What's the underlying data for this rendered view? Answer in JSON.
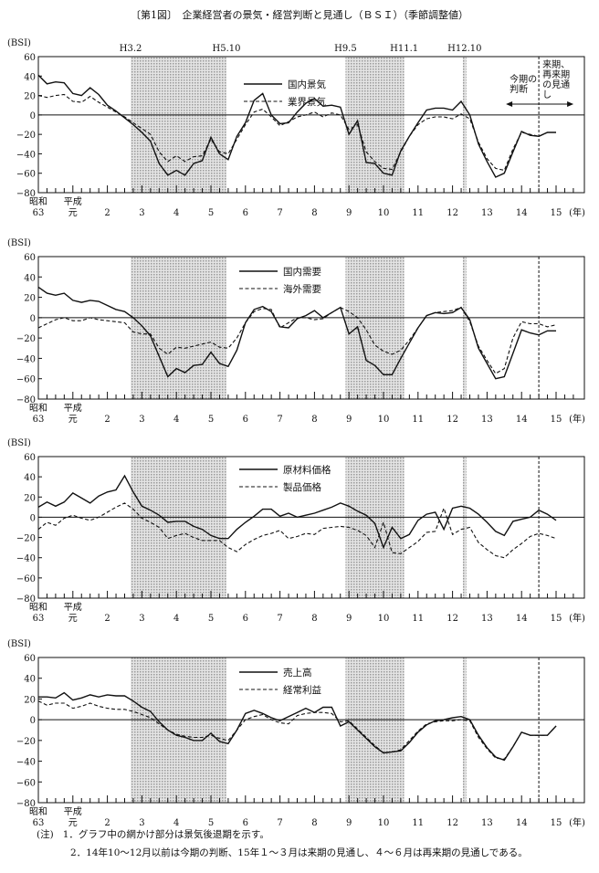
{
  "title": "〔第1図〕　企業経営者の景気・経営判断と見通し（ＢＳＩ）（季節調整値）",
  "period_labels": [
    "H3.2",
    "H5.10",
    "H9.5",
    "H11.1",
    "H12.10"
  ],
  "annotations": {
    "forecast": [
      "来期、",
      "再来期",
      "の見通",
      "し"
    ],
    "current": [
      "今期の",
      "判断"
    ]
  },
  "notes": {
    "prefix": "(注)",
    "items": [
      "1．グラフ中の網かけ部分は景気後退期を示す。",
      "2．14年10〜12月以前は今期の判断、15年１〜３月は来期の見通し、４〜６月は再来期の見通しである。"
    ]
  },
  "colors": {
    "line": "#111111",
    "shade": "#c8c8c8"
  },
  "chart_data": [
    {
      "type": "line",
      "ylabel": "(BSI)",
      "ylim": [
        -80,
        60
      ],
      "yticks": [
        "60",
        "40",
        "20",
        "0",
        "−20",
        "−40",
        "−60",
        "−80"
      ],
      "ytick_values": [
        60,
        40,
        20,
        0,
        -20,
        -40,
        -60,
        -80
      ],
      "xticks": [
        [
          "昭和",
          "63"
        ],
        [
          "平成",
          "元"
        ],
        [
          "",
          "2"
        ],
        [
          "",
          "3"
        ],
        [
          "",
          "4"
        ],
        [
          "",
          "5"
        ],
        [
          "",
          "6"
        ],
        [
          "",
          "7"
        ],
        [
          "",
          "8"
        ],
        [
          "",
          "9"
        ],
        [
          "",
          "10"
        ],
        [
          "",
          "11"
        ],
        [
          "",
          "12"
        ],
        [
          "",
          "13"
        ],
        [
          "",
          "14"
        ],
        [
          "",
          "15"
        ]
      ],
      "xunit": "(年)",
      "recessions_quarters": [
        [
          10.7,
          21.8
        ],
        [
          35.6,
          42.4
        ],
        [
          49.2,
          49.6
        ]
      ],
      "forecast_start_quarter": 58,
      "legend": "top-center",
      "series": [
        {
          "name": "国内景気",
          "style": "solid",
          "values": [
            41,
            32,
            34,
            33,
            22,
            20,
            28,
            21,
            10,
            4,
            -3,
            -10,
            -18,
            -27,
            -50,
            -62,
            -57,
            -62,
            -50,
            -47,
            -23,
            -40,
            -46,
            -22,
            -8,
            15,
            22,
            0,
            -9,
            -8,
            3,
            12,
            17,
            9,
            10,
            8,
            -20,
            -6,
            -49,
            -50,
            -60,
            -62,
            -37,
            -22,
            -8,
            5,
            7,
            7,
            5,
            14,
            0,
            -30,
            -48,
            -64,
            -60,
            -38,
            -17,
            -21,
            -22,
            -18,
            -18
          ]
        },
        {
          "name": "業界景気",
          "style": "dashed",
          "values": [
            20,
            18,
            20,
            21,
            14,
            13,
            19,
            13,
            8,
            3,
            -2,
            -8,
            -14,
            -20,
            -38,
            -48,
            -42,
            -48,
            -43,
            -42,
            -25,
            -38,
            -40,
            -25,
            -10,
            3,
            6,
            -2,
            -11,
            -7,
            -2,
            0,
            3,
            -2,
            2,
            0,
            -15,
            -10,
            -38,
            -48,
            -55,
            -56,
            -38,
            -22,
            -10,
            -4,
            -2,
            -2,
            -4,
            1,
            -4,
            -28,
            -45,
            -55,
            -57,
            -35,
            -18,
            -20,
            -22,
            -18,
            -18
          ]
        }
      ]
    },
    {
      "type": "line",
      "ylabel": "(BSI)",
      "ylim": [
        -80,
        60
      ],
      "yticks": [
        "60",
        "40",
        "20",
        "0",
        "−20",
        "−40",
        "−60",
        "−80"
      ],
      "ytick_values": [
        60,
        40,
        20,
        0,
        -20,
        -40,
        -60,
        -80
      ],
      "xticks": [
        [
          "昭和",
          "63"
        ],
        [
          "平成",
          "元"
        ],
        [
          "",
          "2"
        ],
        [
          "",
          "3"
        ],
        [
          "",
          "4"
        ],
        [
          "",
          "5"
        ],
        [
          "",
          "6"
        ],
        [
          "",
          "7"
        ],
        [
          "",
          "8"
        ],
        [
          "",
          "9"
        ],
        [
          "",
          "10"
        ],
        [
          "",
          "11"
        ],
        [
          "",
          "12"
        ],
        [
          "",
          "13"
        ],
        [
          "",
          "14"
        ],
        [
          "",
          "15"
        ]
      ],
      "xunit": "(年)",
      "recessions_quarters": [
        [
          10.7,
          21.8
        ],
        [
          35.6,
          42.4
        ],
        [
          49.2,
          49.6
        ]
      ],
      "forecast_start_quarter": 58,
      "legend": "top-center",
      "series": [
        {
          "name": "国内需要",
          "style": "solid",
          "values": [
            30,
            24,
            22,
            24,
            17,
            15,
            17,
            16,
            12,
            8,
            6,
            0,
            -8,
            -18,
            -38,
            -58,
            -50,
            -54,
            -47,
            -46,
            -34,
            -45,
            -48,
            -32,
            -5,
            8,
            11,
            6,
            -9,
            -10,
            -1,
            2,
            7,
            0,
            5,
            10,
            -16,
            -9,
            -42,
            -47,
            -56,
            -56,
            -40,
            -25,
            -10,
            2,
            5,
            4,
            5,
            10,
            -2,
            -30,
            -45,
            -60,
            -58,
            -35,
            -12,
            -15,
            -17,
            -13,
            -13
          ]
        },
        {
          "name": "海外需要",
          "style": "dashed",
          "values": [
            -10,
            -6,
            -2,
            0,
            -3,
            -3,
            0,
            -2,
            -3,
            -4,
            -5,
            -14,
            -16,
            -16,
            -30,
            -36,
            -29,
            -30,
            -28,
            -26,
            -24,
            -29,
            -30,
            -20,
            -5,
            6,
            9,
            8,
            -10,
            -5,
            0,
            0,
            -2,
            -1,
            5,
            10,
            6,
            0,
            -12,
            -27,
            -33,
            -36,
            -32,
            -22,
            -10,
            2,
            5,
            6,
            7,
            10,
            -4,
            -28,
            -42,
            -55,
            -50,
            -20,
            -4,
            -6,
            -6,
            -9,
            -7
          ]
        }
      ]
    },
    {
      "type": "line",
      "ylabel": "(BSI)",
      "ylim": [
        -80,
        60
      ],
      "yticks": [
        "60",
        "40",
        "20",
        "0",
        "−20",
        "−40",
        "−60",
        "−80"
      ],
      "ytick_values": [
        60,
        40,
        20,
        0,
        -20,
        -40,
        -60,
        -80
      ],
      "xticks": [
        [
          "昭和",
          "63"
        ],
        [
          "平成",
          "元"
        ],
        [
          "",
          "2"
        ],
        [
          "",
          "3"
        ],
        [
          "",
          "4"
        ],
        [
          "",
          "5"
        ],
        [
          "",
          "6"
        ],
        [
          "",
          "7"
        ],
        [
          "",
          "8"
        ],
        [
          "",
          "9"
        ],
        [
          "",
          "10"
        ],
        [
          "",
          "11"
        ],
        [
          "",
          "12"
        ],
        [
          "",
          "13"
        ],
        [
          "",
          "14"
        ],
        [
          "",
          "15"
        ]
      ],
      "xunit": "(年)",
      "recessions_quarters": [
        [
          10.7,
          21.8
        ],
        [
          35.6,
          42.4
        ],
        [
          49.2,
          49.6
        ]
      ],
      "forecast_start_quarter": 58,
      "legend": "top-center",
      "series": [
        {
          "name": "原材料価格",
          "style": "solid",
          "values": [
            10,
            15,
            11,
            15,
            24,
            19,
            14,
            21,
            25,
            27,
            41,
            25,
            11,
            7,
            2,
            -5,
            -4,
            -4,
            -9,
            -12,
            -18,
            -21,
            -21,
            -12,
            -5,
            1,
            8,
            8,
            1,
            4,
            0,
            2,
            4,
            7,
            10,
            14,
            11,
            6,
            2,
            -6,
            -30,
            -10,
            -21,
            -17,
            -3,
            3,
            5,
            -12,
            9,
            11,
            9,
            3,
            -5,
            -14,
            -18,
            -4,
            -2,
            0,
            7,
            3,
            -3
          ]
        },
        {
          "name": "製品価格",
          "style": "dashed",
          "values": [
            -12,
            -5,
            -8,
            -1,
            2,
            -1,
            -3,
            0,
            5,
            10,
            14,
            8,
            -1,
            -5,
            -10,
            -21,
            -18,
            -16,
            -20,
            -23,
            -23,
            -23,
            -30,
            -34,
            -27,
            -22,
            -18,
            -16,
            -13,
            -21,
            -19,
            -16,
            -17,
            -11,
            -10,
            -9,
            -10,
            -13,
            -18,
            -30,
            -5,
            -35,
            -36,
            -30,
            -24,
            -15,
            -14,
            9,
            -17,
            -12,
            -10,
            -25,
            -32,
            -38,
            -40,
            -32,
            -26,
            -19,
            -16,
            -18,
            -21
          ]
        }
      ]
    },
    {
      "type": "line",
      "ylabel": "(BSI)",
      "ylim": [
        -80,
        60
      ],
      "yticks": [
        "60",
        "40",
        "20",
        "0",
        "−20",
        "−40",
        "−60",
        "−80"
      ],
      "ytick_values": [
        60,
        40,
        20,
        0,
        -20,
        -40,
        -60,
        -80
      ],
      "xticks": [
        [
          "昭和",
          "63"
        ],
        [
          "平成",
          "元"
        ],
        [
          "",
          "2"
        ],
        [
          "",
          "3"
        ],
        [
          "",
          "4"
        ],
        [
          "",
          "5"
        ],
        [
          "",
          "6"
        ],
        [
          "",
          "7"
        ],
        [
          "",
          "8"
        ],
        [
          "",
          "9"
        ],
        [
          "",
          "10"
        ],
        [
          "",
          "11"
        ],
        [
          "",
          "12"
        ],
        [
          "",
          "13"
        ],
        [
          "",
          "14"
        ],
        [
          "",
          "15"
        ]
      ],
      "xunit": "(年)",
      "recessions_quarters": [
        [
          10.7,
          21.8
        ],
        [
          35.6,
          42.4
        ],
        [
          49.2,
          49.6
        ]
      ],
      "forecast_start_quarter": 58,
      "legend": "top-center",
      "series": [
        {
          "name": "売上高",
          "style": "solid",
          "values": [
            22,
            22,
            21,
            26,
            19,
            21,
            24,
            22,
            24,
            23,
            23,
            18,
            12,
            8,
            -2,
            -10,
            -15,
            -17,
            -20,
            -20,
            -13,
            -21,
            -23,
            -10,
            6,
            9,
            6,
            2,
            -1,
            3,
            7,
            11,
            7,
            12,
            12,
            -6,
            -2,
            -10,
            -18,
            -26,
            -32,
            -31,
            -30,
            -22,
            -12,
            -5,
            -1,
            0,
            2,
            3,
            0,
            -15,
            -27,
            -36,
            -39,
            -26,
            -12,
            -15,
            -15,
            -15,
            -6
          ]
        },
        {
          "name": "経常利益",
          "style": "dashed",
          "values": [
            18,
            14,
            16,
            16,
            11,
            13,
            16,
            13,
            11,
            10,
            10,
            8,
            5,
            2,
            -4,
            -10,
            -14,
            -16,
            -17,
            -17,
            -15,
            -18,
            -20,
            -10,
            0,
            3,
            5,
            0,
            -3,
            -4,
            4,
            6,
            7,
            7,
            6,
            -2,
            -1,
            -9,
            -17,
            -25,
            -32,
            -31,
            -29,
            -20,
            -11,
            -4,
            -2,
            -1,
            -1,
            0,
            -1,
            -17,
            -28,
            -37,
            -38,
            -26,
            -12,
            -15,
            -15,
            -15,
            -6
          ]
        }
      ]
    }
  ]
}
